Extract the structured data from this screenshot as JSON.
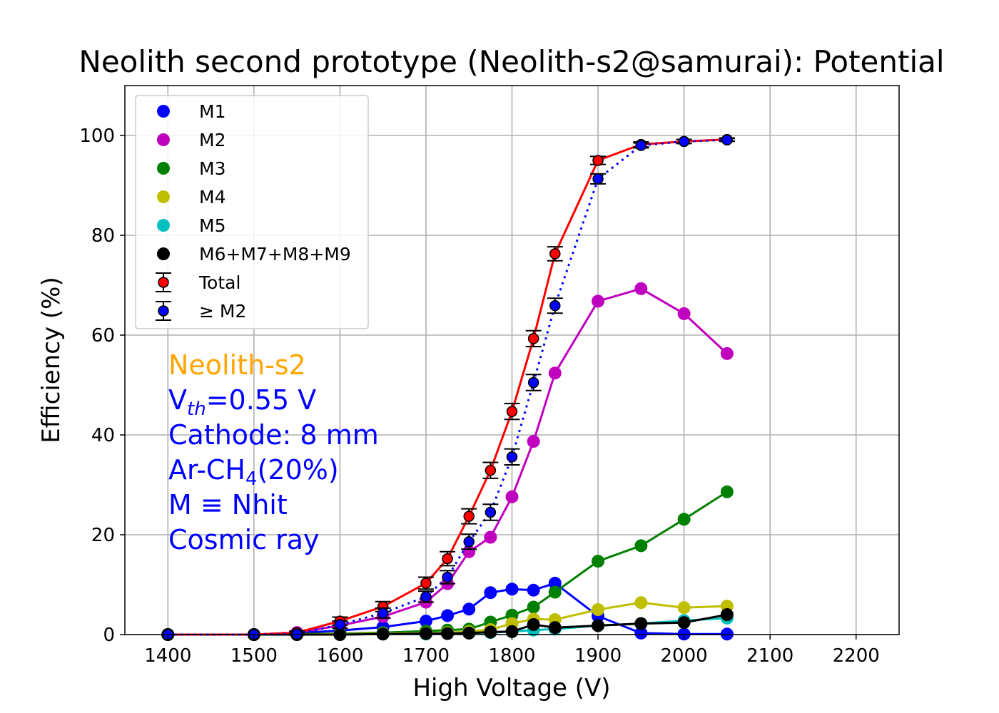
{
  "chart_data": {
    "type": "line",
    "title": "Neolith second prototype (Neolith-s2@samurai): Potential",
    "xlabel": "High Voltage (V)",
    "ylabel": "Efficiency (%)",
    "xlim": [
      1350,
      2250
    ],
    "ylim": [
      0,
      110
    ],
    "xticks": [
      1400,
      1500,
      1600,
      1700,
      1800,
      1900,
      2000,
      2100,
      2200
    ],
    "yticks": [
      0,
      20,
      40,
      60,
      80,
      100
    ],
    "grid": true,
    "legend_position": "upper-left",
    "x": [
      1400,
      1500,
      1550,
      1600,
      1650,
      1700,
      1725,
      1750,
      1775,
      1800,
      1825,
      1850,
      1900,
      1950,
      2000,
      2050
    ],
    "series": [
      {
        "name": "M1",
        "color": "#0000ff",
        "marker": "circle",
        "line": "solid",
        "values": [
          0,
          0,
          0.3,
          0.8,
          1.5,
          2.7,
          3.8,
          5.1,
          8.4,
          9.1,
          8.9,
          10.3,
          3.7,
          0.3,
          0.1,
          0.1
        ]
      },
      {
        "name": "M2",
        "color": "#bf00bf",
        "marker": "circle",
        "line": "solid",
        "values": [
          0,
          0,
          0.4,
          1.8,
          3.6,
          6.5,
          10.2,
          16.6,
          19.5,
          27.6,
          38.7,
          52.4,
          66.8,
          69.3,
          64.3,
          56.3
        ]
      },
      {
        "name": "M3",
        "color": "#008000",
        "marker": "circle",
        "line": "solid",
        "values": [
          0,
          0,
          0.1,
          0.2,
          0.4,
          0.7,
          0.9,
          1.1,
          2.5,
          3.9,
          5.5,
          8.5,
          14.7,
          17.8,
          23.1,
          28.6
        ]
      },
      {
        "name": "M4",
        "color": "#bfbf00",
        "marker": "circle",
        "line": "solid",
        "values": [
          0,
          0,
          0,
          0.1,
          0.2,
          0.3,
          0.4,
          0.6,
          1.0,
          2.2,
          3.1,
          3.0,
          5.0,
          6.4,
          5.4,
          5.7
        ]
      },
      {
        "name": "M5",
        "color": "#00bfbf",
        "marker": "circle",
        "line": "solid",
        "values": [
          0,
          0,
          0,
          0,
          0.1,
          0.1,
          0.2,
          0.3,
          0.4,
          0.6,
          0.9,
          1.1,
          1.8,
          2.2,
          2.8,
          3.3
        ]
      },
      {
        "name": "M6+M7+M8+M9",
        "color": "#000000",
        "marker": "circle",
        "line": "solid",
        "values": [
          0,
          0,
          0,
          0,
          0.1,
          0.2,
          0.2,
          0.3,
          0.5,
          0.6,
          2.0,
          1.4,
          1.8,
          2.2,
          2.4,
          4.0
        ]
      },
      {
        "name": "Total",
        "color": "#ff0000",
        "marker": "circle-errorbar",
        "line": "solid",
        "values": [
          0,
          0,
          0.4,
          2.7,
          5.6,
          10.3,
          15.2,
          23.7,
          32.9,
          44.7,
          59.3,
          76.3,
          95.0,
          98.2,
          98.8,
          99.2
        ],
        "errors": [
          0,
          0,
          0.3,
          0.8,
          1.0,
          1.2,
          1.4,
          1.5,
          1.6,
          1.6,
          1.6,
          1.4,
          0.8,
          0.5,
          0.4,
          0.3
        ]
      },
      {
        "name": " ≥ M2",
        "color": "#0000ff",
        "marker": "circle-errorbar",
        "line": "dotted",
        "values": [
          0,
          0,
          0.1,
          2.0,
          4.3,
          7.6,
          11.5,
          18.6,
          24.5,
          35.6,
          50.5,
          65.9,
          91.3,
          98.0,
          98.8,
          99.1
        ],
        "errors": [
          0,
          0,
          0.2,
          0.7,
          1.0,
          1.1,
          1.3,
          1.5,
          1.6,
          1.6,
          1.6,
          1.5,
          1.0,
          0.5,
          0.4,
          0.3
        ]
      }
    ],
    "annotations": [
      {
        "text": "Neolith-s2",
        "color": "#ffa500"
      },
      {
        "text": "V",
        "sub": "th",
        "tail": "=0.55 V",
        "color": "#0000ff"
      },
      {
        "text": "Cathode: 8 mm",
        "color": "#0000ff"
      },
      {
        "text": "Ar-CH",
        "sub": "4",
        "tail": "(20%)",
        "color": "#0000ff"
      },
      {
        "text": "M ≡ Nhit",
        "color": "#0000ff"
      },
      {
        "text": "Cosmic ray",
        "color": "#0000ff"
      }
    ]
  }
}
